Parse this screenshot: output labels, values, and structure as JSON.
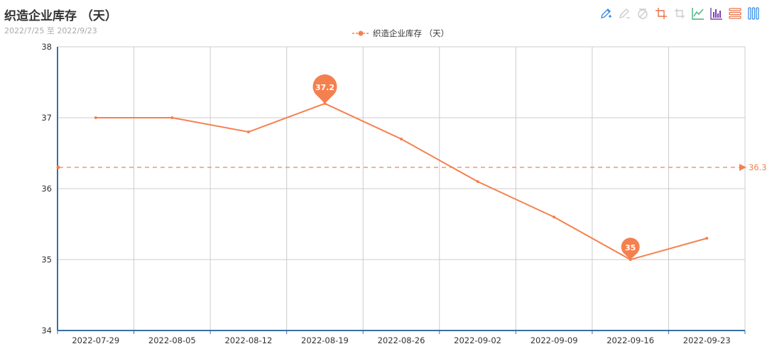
{
  "title": "织造企业库存 （天）",
  "subtitle": "2022/7/25 至 2022/9/23",
  "legend": {
    "label": "织造企业库存 （天）"
  },
  "toolbox": [
    {
      "name": "mark-pen-icon",
      "color": "#3a8ee6"
    },
    {
      "name": "mark-undo-icon",
      "color": "#cccccc"
    },
    {
      "name": "mark-clear-icon",
      "color": "#cccccc"
    },
    {
      "name": "data-zoom-icon",
      "color": "#e8734a"
    },
    {
      "name": "data-zoom-reset-icon",
      "color": "#cccccc"
    },
    {
      "name": "line-chart-icon",
      "color": "#3fb27f"
    },
    {
      "name": "bar-chart-icon",
      "color": "#7b3fb2"
    },
    {
      "name": "stack-icon",
      "color": "#e8734a"
    },
    {
      "name": "tiled-icon",
      "color": "#3a8ee6"
    }
  ],
  "chart_data": {
    "type": "line",
    "title": "织造企业库存 （天）",
    "subtitle": "2022/7/25 至 2022/9/23",
    "categories": [
      "2022-07-29",
      "2022-08-05",
      "2022-08-12",
      "2022-08-19",
      "2022-08-26",
      "2022-09-02",
      "2022-09-09",
      "2022-09-16",
      "2022-09-23"
    ],
    "series": [
      {
        "name": "织造企业库存 （天）",
        "values": [
          37.0,
          37.0,
          36.8,
          37.2,
          36.7,
          36.1,
          35.6,
          35.0,
          35.3
        ],
        "color": "#f5804f"
      }
    ],
    "ylim": [
      34,
      38
    ],
    "yticks": [
      "34",
      "35",
      "36",
      "37",
      "38"
    ],
    "grid": true,
    "legend_position": "top-center",
    "mark_points": [
      {
        "label": "37.2",
        "category": "2022-08-19",
        "value": 37.2,
        "kind": "max"
      },
      {
        "label": "35",
        "category": "2022-09-16",
        "value": 35.0,
        "kind": "min"
      }
    ],
    "mark_line": {
      "label": "36.3",
      "value": 36.3,
      "kind": "average"
    },
    "xlabel": "",
    "ylabel": ""
  }
}
